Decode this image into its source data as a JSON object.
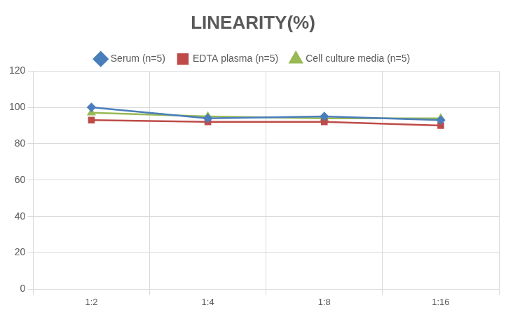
{
  "chart_data": {
    "type": "line",
    "title": "LINEARITY(%)",
    "categories": [
      "1:2",
      "1:4",
      "1:8",
      "1:16"
    ],
    "series": [
      {
        "name": "Serum (n=5)",
        "color": "#4a7ebb",
        "marker": "diamond",
        "values": [
          100,
          94,
          95,
          93
        ]
      },
      {
        "name": "EDTA plasma (n=5)",
        "color": "#be4b48",
        "marker": "square",
        "values": [
          93,
          92,
          92,
          90
        ]
      },
      {
        "name": "Cell culture media (n=5)",
        "color": "#98b954",
        "marker": "triangle",
        "values": [
          97,
          95,
          94,
          94
        ]
      }
    ],
    "ylim": [
      0,
      120
    ],
    "yticks": [
      0,
      20,
      40,
      60,
      80,
      100,
      120
    ],
    "grid": true,
    "legend": "top"
  }
}
